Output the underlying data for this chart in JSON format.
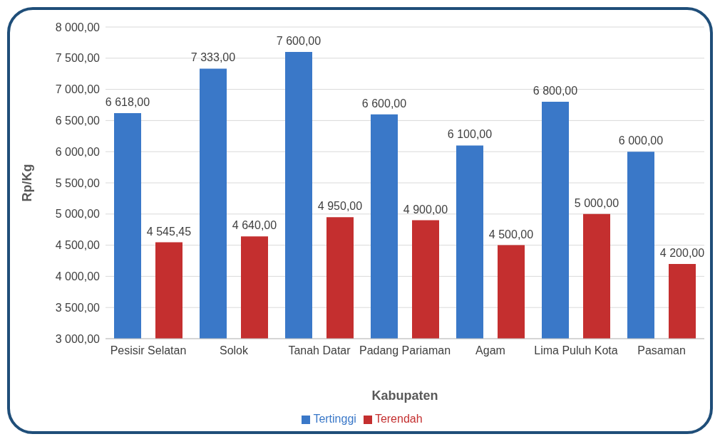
{
  "chart_data": {
    "type": "bar",
    "xlabel": "Kabupaten",
    "ylabel": "Rp/Kg",
    "categories": [
      "Pesisir Selatan",
      "Solok",
      "Tanah Datar",
      "Padang Pariaman",
      "Agam",
      "Lima Puluh Kota",
      "Pasaman"
    ],
    "series": [
      {
        "name": "Tertinggi",
        "color": "#3a78c8",
        "values": [
          6618,
          7333,
          7600,
          6600,
          6100,
          6800,
          6000
        ],
        "value_labels": [
          "6 618,00",
          "7 333,00",
          "7 600,00",
          "6 600,00",
          "6 100,00",
          "6 800,00",
          "6 000,00"
        ]
      },
      {
        "name": "Terendah",
        "color": "#c42f2f",
        "values": [
          4545.45,
          4640,
          4950,
          4900,
          4500,
          5000,
          4200
        ],
        "value_labels": [
          "4 545,45",
          "4 640,00",
          "4 950,00",
          "4 900,00",
          "4 500,00",
          "5 000,00",
          "4 200,00"
        ]
      }
    ],
    "ylim": [
      3000,
      8000
    ],
    "yticks": [
      {
        "value": 3000,
        "label": "3 000,00"
      },
      {
        "value": 3500,
        "label": "3 500,00"
      },
      {
        "value": 4000,
        "label": "4 000,00"
      },
      {
        "value": 4500,
        "label": "4 500,00"
      },
      {
        "value": 5000,
        "label": "5 000,00"
      },
      {
        "value": 5500,
        "label": "5 500,00"
      },
      {
        "value": 6000,
        "label": "6 000,00"
      },
      {
        "value": 6500,
        "label": "6 500,00"
      },
      {
        "value": 7000,
        "label": "7 000,00"
      },
      {
        "value": 7500,
        "label": "7 500,00"
      },
      {
        "value": 8000,
        "label": "8 000,00"
      }
    ],
    "grid": "y",
    "legend": "bottom"
  }
}
